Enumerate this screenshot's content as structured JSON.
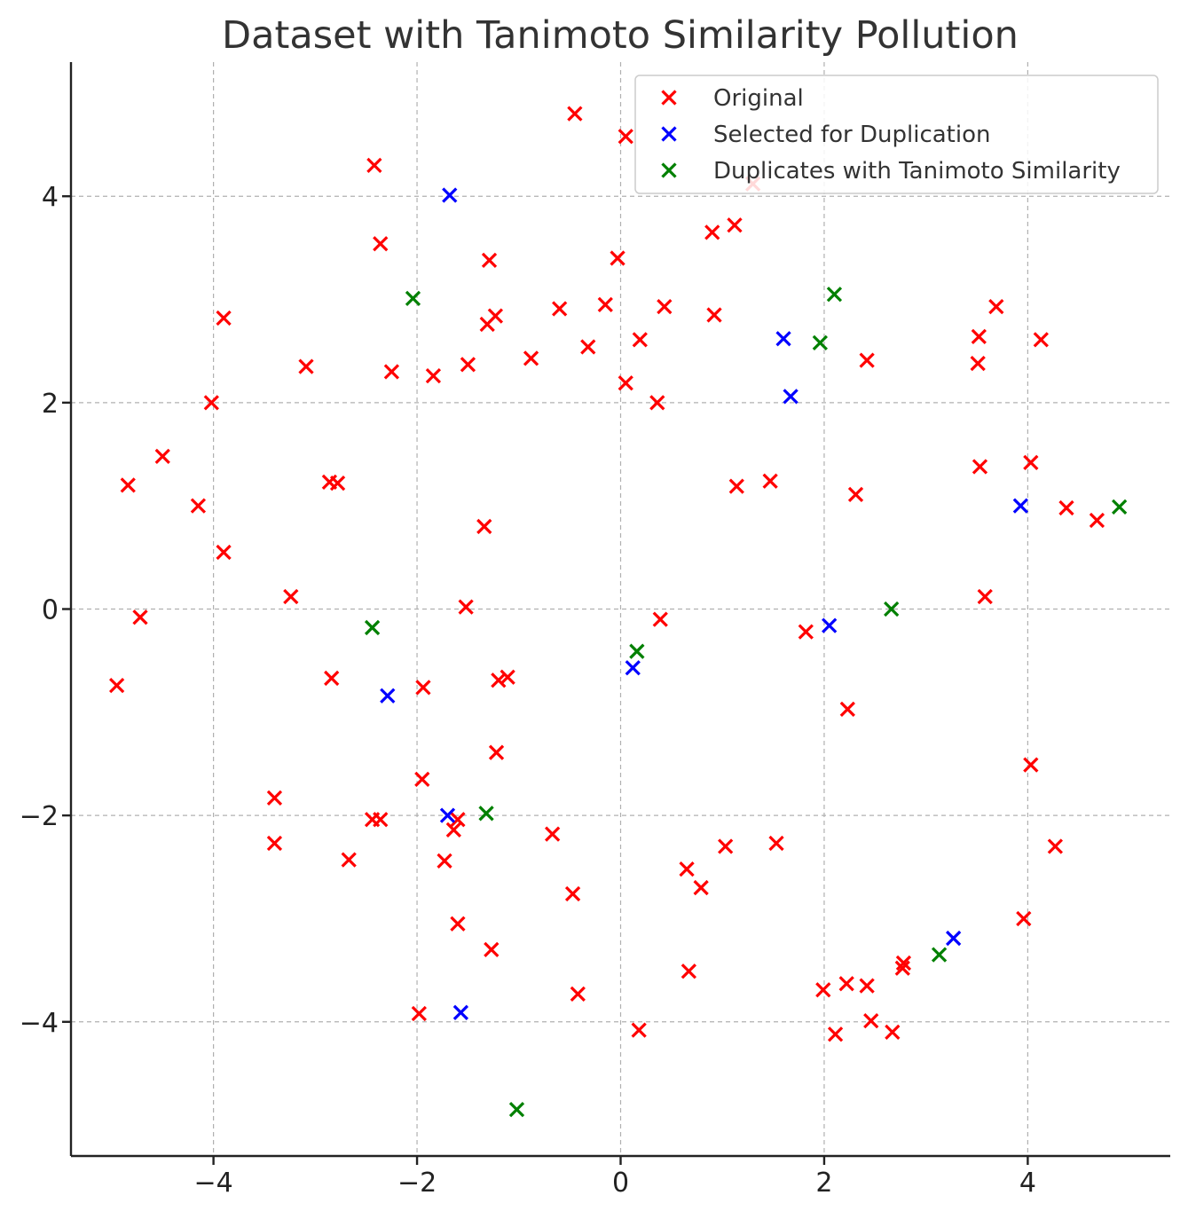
{
  "chart_data": {
    "type": "scatter",
    "title": "Dataset with Tanimoto Similarity Pollution",
    "xlabel": "",
    "ylabel": "",
    "xlim": [
      -5.4,
      5.4
    ],
    "ylim": [
      -5.3,
      5.3
    ],
    "xticks": [
      -4,
      -2,
      0,
      2,
      4
    ],
    "yticks": [
      -4,
      -2,
      0,
      2,
      4
    ],
    "xtick_labels": [
      "−4",
      "−2",
      "0",
      "2",
      "4"
    ],
    "ytick_labels": [
      "−4",
      "−2",
      "0",
      "2",
      "4"
    ],
    "grid": true,
    "legend_position": "top-right",
    "marker": "x",
    "series": [
      {
        "name": "Original",
        "color": "#ff0000",
        "points": [
          [
            -0.45,
            4.8
          ],
          [
            0.05,
            4.58
          ],
          [
            1.3,
            4.12
          ],
          [
            -2.42,
            4.3
          ],
          [
            -2.36,
            3.54
          ],
          [
            1.12,
            3.72
          ],
          [
            0.9,
            3.65
          ],
          [
            -1.29,
            3.38
          ],
          [
            -0.03,
            3.4
          ],
          [
            -1.31,
            2.76
          ],
          [
            -1.23,
            2.84
          ],
          [
            -3.9,
            2.82
          ],
          [
            -0.6,
            2.91
          ],
          [
            -0.15,
            2.95
          ],
          [
            0.43,
            2.93
          ],
          [
            0.92,
            2.85
          ],
          [
            3.69,
            2.93
          ],
          [
            -0.32,
            2.54
          ],
          [
            0.19,
            2.61
          ],
          [
            3.52,
            2.64
          ],
          [
            4.13,
            2.61
          ],
          [
            -3.09,
            2.35
          ],
          [
            -2.25,
            2.3
          ],
          [
            -1.84,
            2.26
          ],
          [
            -1.5,
            2.37
          ],
          [
            -0.88,
            2.43
          ],
          [
            2.42,
            2.41
          ],
          [
            3.51,
            2.38
          ],
          [
            0.05,
            2.19
          ],
          [
            -4.02,
            2.0
          ],
          [
            0.36,
            2.0
          ],
          [
            -4.5,
            1.48
          ],
          [
            -4.84,
            1.2
          ],
          [
            -2.86,
            1.23
          ],
          [
            -2.78,
            1.22
          ],
          [
            1.14,
            1.19
          ],
          [
            1.47,
            1.24
          ],
          [
            2.31,
            1.11
          ],
          [
            3.53,
            1.38
          ],
          [
            4.03,
            1.42
          ],
          [
            -4.15,
            1.0
          ],
          [
            4.38,
            0.98
          ],
          [
            4.68,
            0.86
          ],
          [
            -1.34,
            0.8
          ],
          [
            -3.9,
            0.55
          ],
          [
            -3.24,
            0.12
          ],
          [
            3.58,
            0.12
          ],
          [
            -1.52,
            0.02
          ],
          [
            -4.72,
            -0.08
          ],
          [
            0.39,
            -0.1
          ],
          [
            1.82,
            -0.22
          ],
          [
            -4.95,
            -0.74
          ],
          [
            -2.84,
            -0.67
          ],
          [
            -1.94,
            -0.76
          ],
          [
            -1.2,
            -0.69
          ],
          [
            -1.11,
            -0.66
          ],
          [
            2.23,
            -0.97
          ],
          [
            -1.22,
            -1.39
          ],
          [
            4.03,
            -1.51
          ],
          [
            -1.95,
            -1.65
          ],
          [
            -3.4,
            -1.83
          ],
          [
            -2.44,
            -2.04
          ],
          [
            -2.36,
            -2.04
          ],
          [
            -1.6,
            -2.04
          ],
          [
            -1.64,
            -2.14
          ],
          [
            -0.67,
            -2.18
          ],
          [
            -3.4,
            -2.27
          ],
          [
            1.03,
            -2.3
          ],
          [
            1.53,
            -2.27
          ],
          [
            4.27,
            -2.3
          ],
          [
            -2.67,
            -2.43
          ],
          [
            -1.73,
            -2.44
          ],
          [
            0.65,
            -2.52
          ],
          [
            0.79,
            -2.7
          ],
          [
            -0.47,
            -2.76
          ],
          [
            3.96,
            -3.0
          ],
          [
            -1.6,
            -3.05
          ],
          [
            -1.27,
            -3.3
          ],
          [
            2.78,
            -3.43
          ],
          [
            2.77,
            -3.48
          ],
          [
            0.67,
            -3.51
          ],
          [
            2.22,
            -3.63
          ],
          [
            2.42,
            -3.65
          ],
          [
            1.99,
            -3.69
          ],
          [
            -0.42,
            -3.73
          ],
          [
            2.46,
            -3.99
          ],
          [
            -1.98,
            -3.92
          ],
          [
            0.18,
            -4.08
          ],
          [
            2.11,
            -4.12
          ],
          [
            2.67,
            -4.1
          ]
        ]
      },
      {
        "name": "Selected for Duplication",
        "color": "#0000ff",
        "points": [
          [
            -1.68,
            4.01
          ],
          [
            1.6,
            2.62
          ],
          [
            1.67,
            2.06
          ],
          [
            3.93,
            1.0
          ],
          [
            2.05,
            -0.16
          ],
          [
            0.12,
            -0.57
          ],
          [
            -2.29,
            -0.84
          ],
          [
            -1.7,
            -2.0
          ],
          [
            3.27,
            -3.19
          ],
          [
            -1.57,
            -3.91
          ]
        ]
      },
      {
        "name": "Duplicates with Tanimoto Similarity",
        "color": "#008000",
        "points": [
          [
            -2.04,
            3.01
          ],
          [
            2.1,
            3.05
          ],
          [
            1.96,
            2.58
          ],
          [
            4.9,
            0.99
          ],
          [
            2.66,
            0.0
          ],
          [
            -2.44,
            -0.18
          ],
          [
            0.16,
            -0.41
          ],
          [
            -1.32,
            -1.98
          ],
          [
            3.13,
            -3.35
          ],
          [
            -1.02,
            -4.85
          ]
        ]
      }
    ]
  }
}
